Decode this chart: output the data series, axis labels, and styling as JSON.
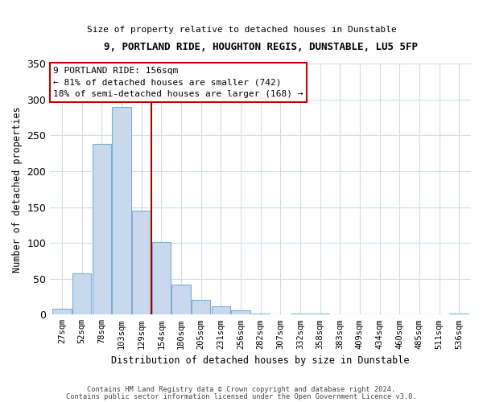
{
  "title": "9, PORTLAND RIDE, HOUGHTON REGIS, DUNSTABLE, LU5 5FP",
  "subtitle": "Size of property relative to detached houses in Dunstable",
  "xlabel": "Distribution of detached houses by size in Dunstable",
  "ylabel": "Number of detached properties",
  "bar_labels": [
    "27sqm",
    "52sqm",
    "78sqm",
    "103sqm",
    "129sqm",
    "154sqm",
    "180sqm",
    "205sqm",
    "231sqm",
    "256sqm",
    "282sqm",
    "307sqm",
    "332sqm",
    "358sqm",
    "383sqm",
    "409sqm",
    "434sqm",
    "460sqm",
    "485sqm",
    "511sqm",
    "536sqm"
  ],
  "bar_values": [
    8,
    58,
    238,
    290,
    145,
    101,
    42,
    20,
    12,
    6,
    2,
    0,
    2,
    1,
    0,
    0,
    0,
    0,
    0,
    0,
    2
  ],
  "bar_color": "#c8d9ee",
  "bar_edge_color": "#7bafd4",
  "bar_edge_width": 0.8,
  "vline_position": 4.5,
  "vline_color": "#aa0000",
  "annotation_line1": "9 PORTLAND RIDE: 156sqm",
  "annotation_line2": "← 81% of detached houses are smaller (742)",
  "annotation_line3": "18% of semi-detached houses are larger (168) →",
  "annotation_box_color": "#cc0000",
  "ylim": [
    0,
    350
  ],
  "yticks": [
    0,
    50,
    100,
    150,
    200,
    250,
    300,
    350
  ],
  "bg_color": "#ffffff",
  "grid_color": "#d0dce8",
  "footer1": "Contains HM Land Registry data © Crown copyright and database right 2024.",
  "footer2": "Contains public sector information licensed under the Open Government Licence v3.0."
}
